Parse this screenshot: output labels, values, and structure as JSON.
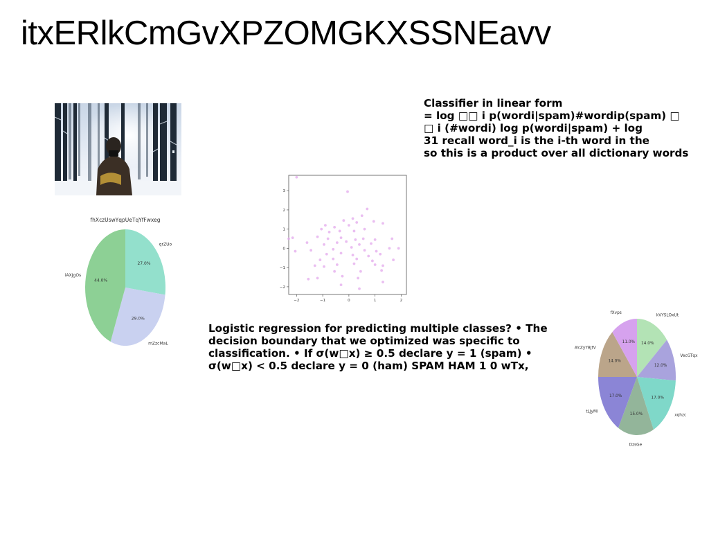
{
  "title": "itxERlkCmGvXPZOMGKXSSNEavv",
  "text_blocks": {
    "top": [
      "Classifier in linear form",
      "= log □□ i p(wordi|spam)#wordip(spam) □",
      "□ i (#wordi) log p(wordi|spam) + log",
      "31 recall word_i is the i-th word in the",
      "so this is a product over all dictionary words"
    ],
    "bottom": [
      "Logistic regression for predicting multiple classes? • The",
      "decision boundary that we optimized was specific to",
      "classification. • If σ(w□x) ≥ 0.5 declare y = 1 (spam) •",
      "σ(w□x) < 0.5 declare y = 0 (ham) SPAM HAM 1 0 wTx,"
    ]
  },
  "chart_data": [
    {
      "type": "pie",
      "title": "fhXczUswYqpUeTqYfFwxeg",
      "slices": [
        {
          "label": "qrZUo",
          "value": 27.0,
          "color": "#93e0cc"
        },
        {
          "label": "mZzcMaL",
          "value": 29.0,
          "color": "#c9d1f0"
        },
        {
          "label": "iAXJgOs",
          "value": 44.0,
          "color": "#8dd095"
        }
      ]
    },
    {
      "type": "scatter",
      "color": "#e3a8ec",
      "xlim": [
        -2.3,
        2.2
      ],
      "ylim": [
        -2.4,
        3.8
      ],
      "xticks": [
        -2,
        -1,
        0,
        1,
        2
      ],
      "yticks": [
        -2,
        -1,
        0,
        1,
        2,
        3
      ],
      "points": [
        [
          -2.0,
          3.7
        ],
        [
          -0.05,
          2.95
        ],
        [
          0.7,
          2.05
        ],
        [
          0.5,
          1.7
        ],
        [
          0.15,
          1.55
        ],
        [
          -0.2,
          1.45
        ],
        [
          0.3,
          1.35
        ],
        [
          0.95,
          1.4
        ],
        [
          1.3,
          1.3
        ],
        [
          -0.9,
          1.2
        ],
        [
          -1.05,
          1.0
        ],
        [
          -0.55,
          1.1
        ],
        [
          0.0,
          1.2
        ],
        [
          0.6,
          1.0
        ],
        [
          -0.75,
          0.85
        ],
        [
          -0.35,
          0.9
        ],
        [
          0.2,
          0.9
        ],
        [
          -2.15,
          0.55
        ],
        [
          -2.3,
          0.5
        ],
        [
          -1.2,
          0.6
        ],
        [
          -0.8,
          0.5
        ],
        [
          -0.3,
          0.55
        ],
        [
          0.25,
          0.45
        ],
        [
          0.55,
          0.5
        ],
        [
          1.0,
          0.45
        ],
        [
          1.65,
          0.5
        ],
        [
          -1.6,
          0.3
        ],
        [
          -0.95,
          0.2
        ],
        [
          -0.45,
          0.3
        ],
        [
          -0.1,
          0.35
        ],
        [
          0.4,
          0.2
        ],
        [
          0.85,
          0.25
        ],
        [
          1.55,
          0.0
        ],
        [
          -2.05,
          -0.15
        ],
        [
          -1.45,
          -0.1
        ],
        [
          -0.6,
          -0.05
        ],
        [
          0.1,
          0.05
        ],
        [
          0.6,
          -0.1
        ],
        [
          1.05,
          -0.15
        ],
        [
          1.9,
          0.0
        ],
        [
          -0.85,
          -0.3
        ],
        [
          -0.3,
          -0.25
        ],
        [
          0.15,
          -0.35
        ],
        [
          0.75,
          -0.4
        ],
        [
          1.2,
          -0.3
        ],
        [
          -1.1,
          -0.6
        ],
        [
          -0.6,
          -0.55
        ],
        [
          0.3,
          -0.55
        ],
        [
          0.9,
          -0.65
        ],
        [
          1.7,
          -0.6
        ],
        [
          -1.3,
          -0.9
        ],
        [
          -0.95,
          -0.95
        ],
        [
          -0.45,
          -0.85
        ],
        [
          0.2,
          -0.8
        ],
        [
          1.0,
          -0.85
        ],
        [
          1.3,
          -0.9
        ],
        [
          -0.55,
          -1.2
        ],
        [
          0.45,
          -1.2
        ],
        [
          1.25,
          -1.15
        ],
        [
          -1.55,
          -1.6
        ],
        [
          -1.2,
          -1.55
        ],
        [
          -0.25,
          -1.45
        ],
        [
          0.35,
          -1.55
        ],
        [
          1.3,
          -1.75
        ],
        [
          -0.3,
          -1.9
        ],
        [
          0.4,
          -2.1
        ]
      ]
    },
    {
      "type": "pie",
      "slices": [
        {
          "label": "kVYSLOxUt",
          "value": 14.0,
          "color": "#b3e3b5"
        },
        {
          "label": "VecGTqx",
          "value": 12.0,
          "color": "#a9a3dd"
        },
        {
          "label": "xqhzc",
          "value": 17.0,
          "color": "#7fd8c9"
        },
        {
          "label": "DzsGe",
          "value": 15.0,
          "color": "#93b59a"
        },
        {
          "label": "tLJyMl",
          "value": 17.0,
          "color": "#8b85d6"
        },
        {
          "label": "WcZyYBjtV",
          "value": 14.0,
          "color": "#bba58a"
        },
        {
          "label": "fXvps",
          "value": 11.0,
          "color": "#d6a2ee"
        }
      ]
    }
  ]
}
